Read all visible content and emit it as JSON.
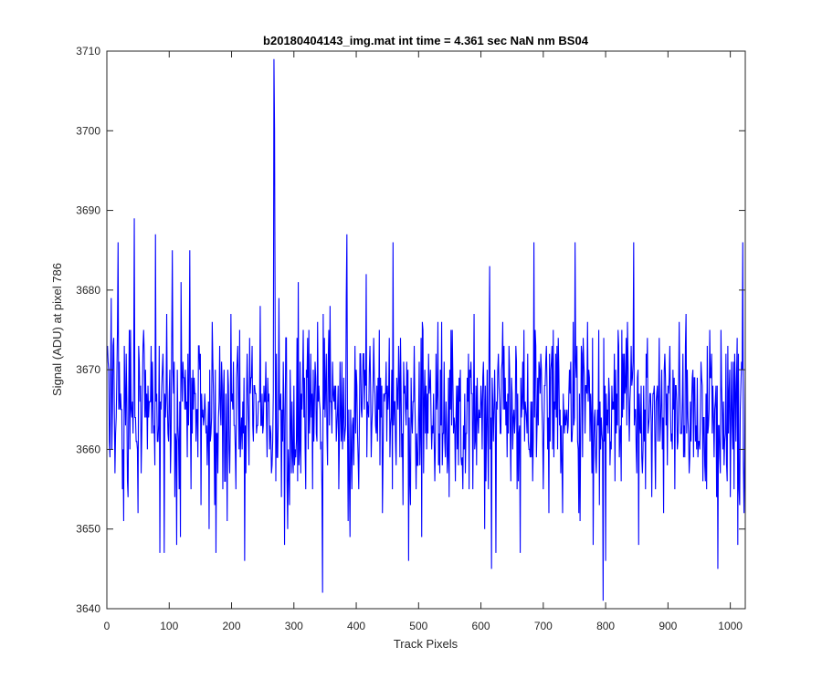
{
  "chart_data": {
    "type": "line",
    "title": "b20180404143_img.mat int time = 4.361 sec  NaN nm BS04",
    "xlabel": "Track Pixels",
    "ylabel": "Signal (ADU) at pixel 786",
    "xlim": [
      0,
      1024
    ],
    "ylim": [
      3640,
      3710
    ],
    "xticks": [
      0,
      100,
      200,
      300,
      400,
      500,
      600,
      700,
      800,
      900,
      1000
    ],
    "yticks": [
      3640,
      3650,
      3660,
      3670,
      3680,
      3690,
      3700,
      3710
    ],
    "grid": false,
    "series_color": "#0000ff",
    "noise": {
      "count": 1024,
      "mean": 3665,
      "std": 6.0,
      "min": 3641,
      "max": 3709,
      "seed": 20180404
    },
    "notable_points": [
      {
        "x": 1,
        "y": 3673
      },
      {
        "x": 18,
        "y": 3686
      },
      {
        "x": 44,
        "y": 3689
      },
      {
        "x": 78,
        "y": 3687
      },
      {
        "x": 85,
        "y": 3647
      },
      {
        "x": 92,
        "y": 3647
      },
      {
        "x": 105,
        "y": 3685
      },
      {
        "x": 112,
        "y": 3648
      },
      {
        "x": 133,
        "y": 3685
      },
      {
        "x": 175,
        "y": 3647
      },
      {
        "x": 221,
        "y": 3646
      },
      {
        "x": 268,
        "y": 3709
      },
      {
        "x": 269,
        "y": 3700
      },
      {
        "x": 285,
        "y": 3648
      },
      {
        "x": 346,
        "y": 3642
      },
      {
        "x": 385,
        "y": 3687
      },
      {
        "x": 459,
        "y": 3686
      },
      {
        "x": 484,
        "y": 3646
      },
      {
        "x": 624,
        "y": 3647
      },
      {
        "x": 685,
        "y": 3686
      },
      {
        "x": 751,
        "y": 3686
      },
      {
        "x": 796,
        "y": 3641
      },
      {
        "x": 800,
        "y": 3646
      },
      {
        "x": 845,
        "y": 3686
      },
      {
        "x": 980,
        "y": 3645
      },
      {
        "x": 1020,
        "y": 3686
      },
      {
        "x": 1024,
        "y": 3670
      }
    ]
  }
}
